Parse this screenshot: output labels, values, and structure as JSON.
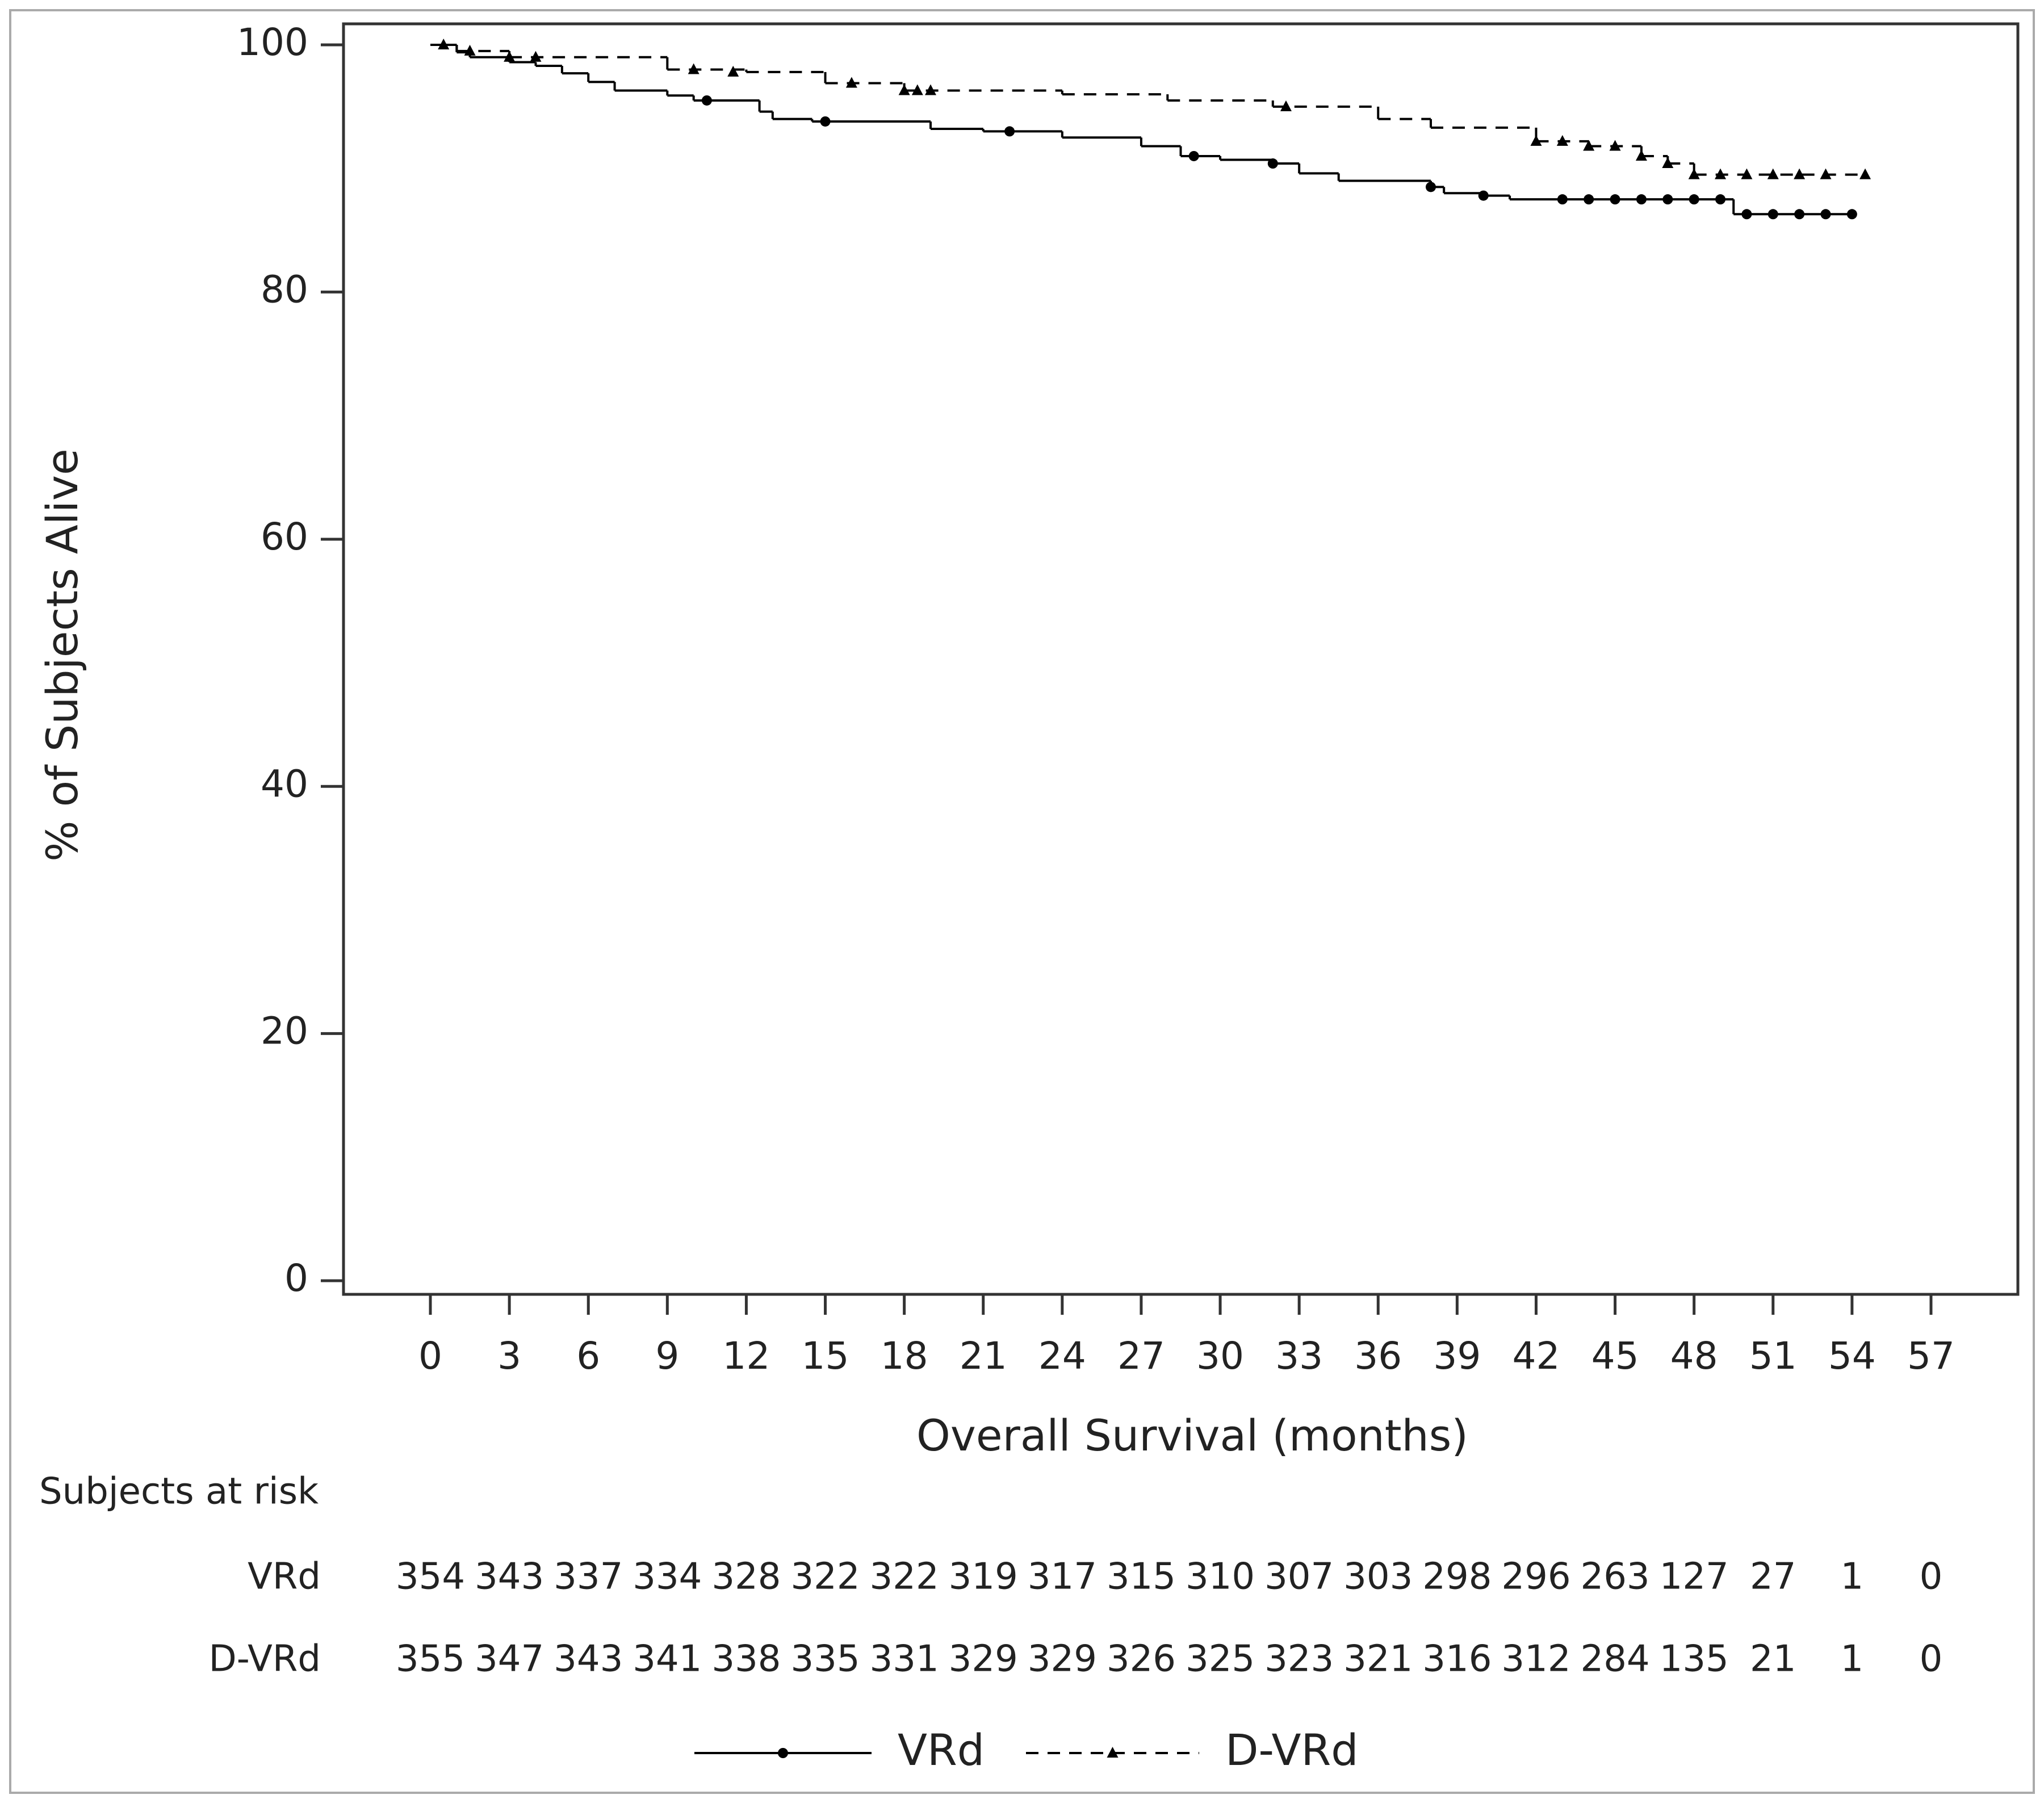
{
  "chart_data": {
    "type": "km",
    "xlabel": "Overall Survival (months)",
    "ylabel": "% of Subjects Alive",
    "xlim": [
      -3.3,
      60.3
    ],
    "ylim": [
      -1.1,
      101.7
    ],
    "xticks": [
      0,
      3,
      6,
      9,
      12,
      15,
      18,
      21,
      24,
      27,
      30,
      33,
      36,
      39,
      42,
      45,
      48,
      51,
      54,
      57
    ],
    "yticks": [
      0,
      20,
      40,
      60,
      80,
      100
    ],
    "series": [
      {
        "name": "VRd",
        "color": "#000000",
        "line": "solid",
        "marker": "circle",
        "x": [
          0,
          1,
          1.5,
          3,
          4,
          5,
          6,
          7,
          9,
          10,
          12.5,
          13,
          14.5,
          19,
          21,
          24,
          27,
          28.5,
          30,
          32,
          33,
          34.5,
          38,
          38.5,
          40,
          41,
          49.5,
          54
        ],
        "values": [
          100,
          99.4,
          99,
          98.6,
          98.3,
          97.7,
          97,
          96.3,
          95.9,
          95.5,
          94.6,
          94,
          93.8,
          93.2,
          93,
          92.5,
          91.8,
          91,
          90.7,
          90.4,
          89.6,
          89,
          88.5,
          88,
          87.8,
          87.5,
          86.3,
          86.3
        ],
        "censored_x": [
          10.5,
          15,
          22,
          29,
          32,
          38,
          40,
          43,
          44,
          45,
          46,
          47,
          48,
          49,
          50,
          51,
          52,
          53,
          54
        ],
        "censored_values": [
          95.5,
          93.8,
          93,
          91,
          90.4,
          88.5,
          87.8,
          87.5,
          87.5,
          87.5,
          87.5,
          87.5,
          87.5,
          87.5,
          86.3,
          86.3,
          86.3,
          86.3,
          86.3
        ]
      },
      {
        "name": "D-VRd",
        "color": "#000000",
        "line": "dashed",
        "marker": "triangle",
        "x": [
          0,
          1,
          3,
          9,
          12,
          15,
          18,
          24,
          28,
          32,
          36,
          38,
          42,
          44,
          46,
          47,
          48,
          54.5
        ],
        "values": [
          100,
          99.5,
          99,
          98,
          97.8,
          96.9,
          96.3,
          96,
          95.5,
          95,
          94,
          93.3,
          92.2,
          91.8,
          91,
          90.4,
          89.5,
          89.5
        ],
        "censored_x": [
          0.5,
          1.5,
          3,
          4,
          10,
          11.5,
          16,
          18,
          18.5,
          19,
          32.5,
          42,
          43,
          44,
          45,
          46,
          47,
          48,
          49,
          50,
          51,
          52,
          53,
          54.5
        ],
        "censored_values": [
          100,
          99.5,
          99,
          99,
          98,
          97.8,
          96.9,
          96.3,
          96.3,
          96.3,
          95,
          92.2,
          92.2,
          91.8,
          91.8,
          91,
          90.4,
          89.5,
          89.5,
          89.5,
          89.5,
          89.5,
          89.5,
          89.5
        ]
      }
    ],
    "risk_table": {
      "title": "Subjects at risk",
      "rows": [
        {
          "name": "VRd",
          "values": [
            354,
            343,
            337,
            334,
            328,
            322,
            322,
            319,
            317,
            315,
            310,
            307,
            303,
            298,
            296,
            263,
            127,
            27,
            1,
            0
          ]
        },
        {
          "name": "D-VRd",
          "values": [
            355,
            347,
            343,
            341,
            338,
            335,
            331,
            329,
            329,
            326,
            325,
            323,
            321,
            316,
            312,
            284,
            135,
            21,
            1,
            0
          ]
        }
      ]
    }
  }
}
